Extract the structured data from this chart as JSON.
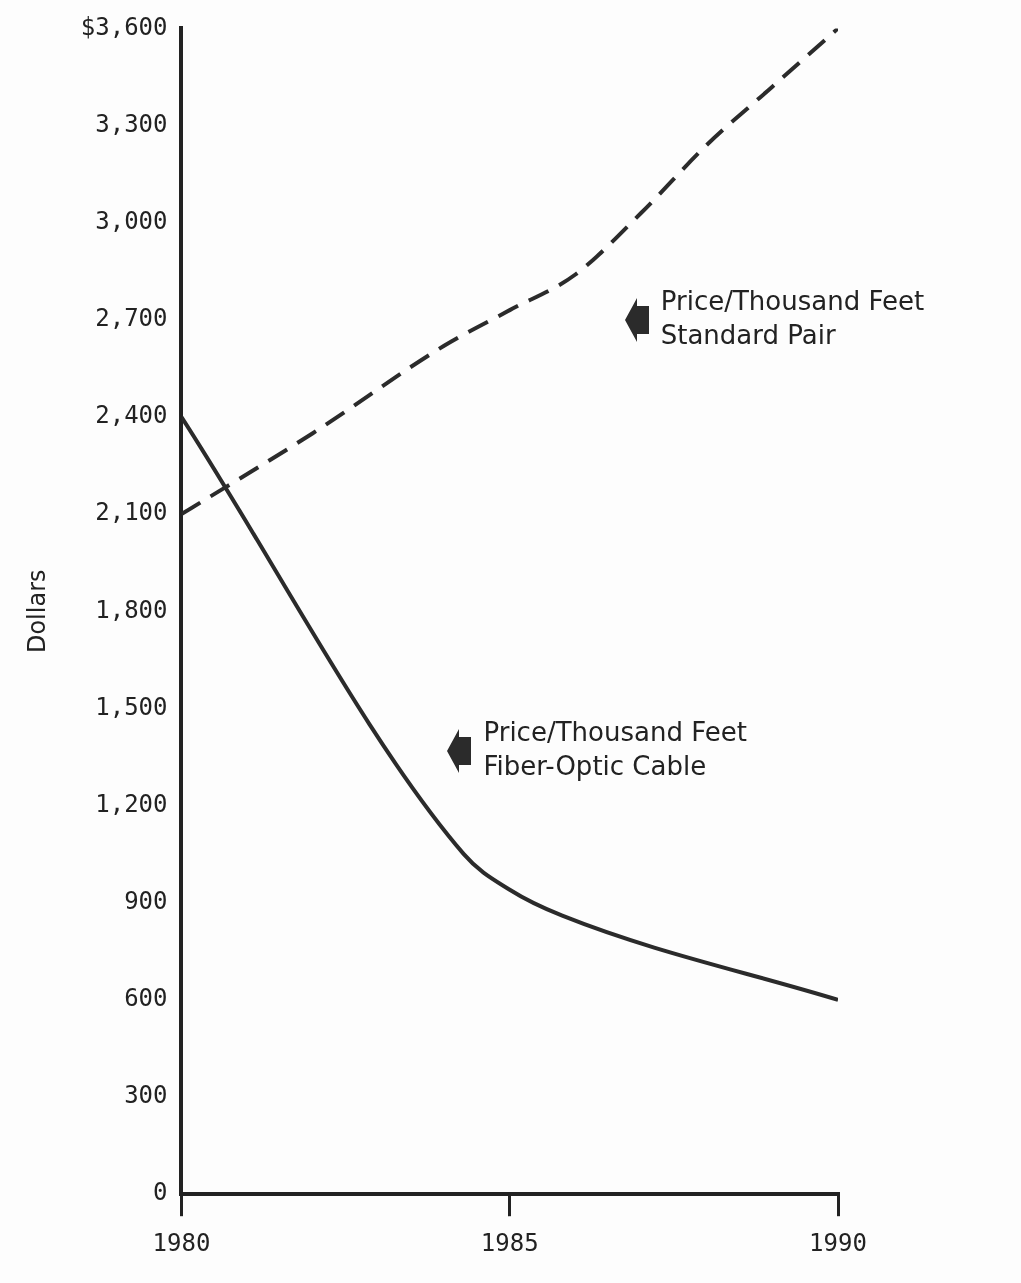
{
  "chart_data": {
    "type": "line",
    "ylabel": "Dollars",
    "xlim": [
      1980,
      1990
    ],
    "xticks": [
      1980,
      1985,
      1990
    ],
    "ylim": [
      0,
      3600
    ],
    "yticks": [
      0,
      300,
      600,
      900,
      {
        "value": 1200,
        "label": "1,200"
      },
      {
        "value": 1500,
        "label": "1,500"
      },
      {
        "value": 1800,
        "label": "1,800"
      },
      {
        "value": 2100,
        "label": "2,100"
      },
      {
        "value": 2400,
        "label": "2,400"
      },
      {
        "value": 2700,
        "label": "2,700"
      },
      {
        "value": 3000,
        "label": "3,000"
      },
      {
        "value": 3300,
        "label": "3,300"
      },
      {
        "value": 3600,
        "label": "$3,600"
      }
    ],
    "grid": false,
    "legend": false,
    "marker": "none",
    "series": [
      {
        "color": "#2b2b2b",
        "line_style": "dashed",
        "x": [
          1980,
          1982,
          1984,
          1985,
          1986,
          1987,
          1988,
          1989,
          1990
        ],
        "values": [
          2100,
          2350,
          2620,
          2730,
          2840,
          3030,
          3240,
          3420,
          3600
        ]
      },
      {
        "color": "#2b2b2b",
        "line_style": "solid",
        "x": [
          1980,
          1984.3,
          1985,
          1985.8,
          1990
        ],
        "values": [
          2400,
          1050,
          940,
          860,
          600
        ]
      }
    ],
    "annotations": [
      "Price/Thousand Feet\nStandard Pair",
      "Price/Thousand Feet\nFiber-Optic Cable"
    ]
  }
}
